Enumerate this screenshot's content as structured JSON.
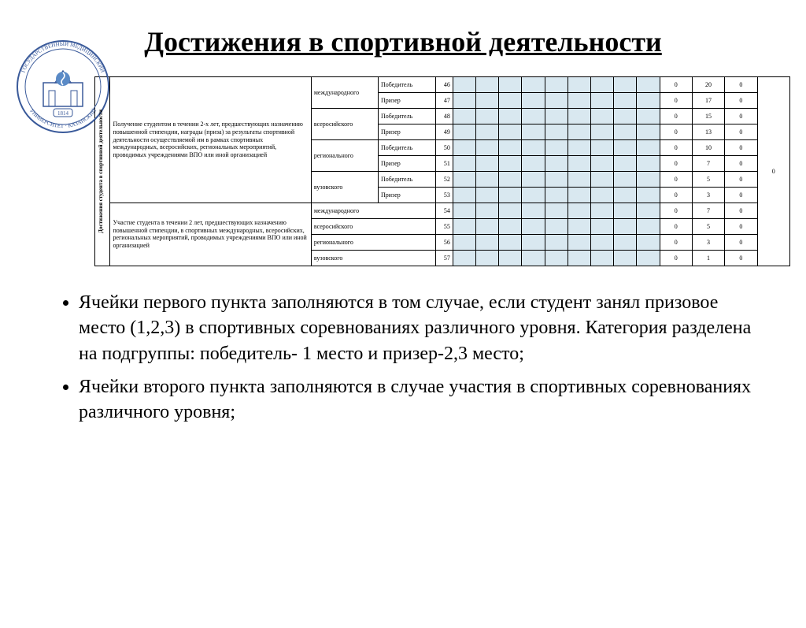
{
  "logo": {
    "org_top": "ГОСУДАРСТВЕННЫЙ МЕДИЦИНСКИЙ",
    "org_bottom": "УНИВЕРСИТЕТ",
    "year": "1814",
    "fill": "#5a8ac6",
    "stroke": "#3a5a9a"
  },
  "title": "Достижения в спортивной деятельности",
  "section_label": "Достижения студента в спортивной деятельности",
  "block1": {
    "desc": "Получение студентом в течении 2-х лет, предшествующих назначению повышенной стипендии, награды (приза) за результаты спортивной деятельности осуществляемой им в рамках спортивных международных, всеросийских, региональных мероприятий, проводимых учреждениями ВПО или иной организацией",
    "levels": [
      {
        "name": "международного",
        "rows": [
          {
            "res": "Победитель",
            "n": "46",
            "c1": "0",
            "c2": "20",
            "c3": "0"
          },
          {
            "res": "Призер",
            "n": "47",
            "c1": "0",
            "c2": "17",
            "c3": "0"
          }
        ]
      },
      {
        "name": "всеросийского",
        "rows": [
          {
            "res": "Победитель",
            "n": "48",
            "c1": "0",
            "c2": "15",
            "c3": "0"
          },
          {
            "res": "Призер",
            "n": "49",
            "c1": "0",
            "c2": "13",
            "c3": "0"
          }
        ]
      },
      {
        "name": "регионального",
        "rows": [
          {
            "res": "Победитель",
            "n": "50",
            "c1": "0",
            "c2": "10",
            "c3": "0"
          },
          {
            "res": "Призер",
            "n": "51",
            "c1": "0",
            "c2": "7",
            "c3": "0"
          }
        ]
      },
      {
        "name": "вузовского",
        "rows": [
          {
            "res": "Победитель",
            "n": "52",
            "c1": "0",
            "c2": "5",
            "c3": "0"
          },
          {
            "res": "Призер",
            "n": "53",
            "c1": "0",
            "c2": "3",
            "c3": "0"
          }
        ]
      }
    ]
  },
  "block2": {
    "desc": "Участие студента в течении 2 лет, предшествующих назначению повышенной стипендии, в спортивных международных, всеросийских, региональных мероприятий, проводимых учреждениями ВПО или иной организацией",
    "rows": [
      {
        "lvl": "международного",
        "n": "54",
        "c1": "0",
        "c2": "7",
        "c3": "0"
      },
      {
        "lvl": "всеросийского",
        "n": "55",
        "c1": "0",
        "c2": "5",
        "c3": "0"
      },
      {
        "lvl": "регионального",
        "n": "56",
        "c1": "0",
        "c2": "3",
        "c3": "0"
      },
      {
        "lvl": "вузовского",
        "n": "57",
        "c1": "0",
        "c2": "1",
        "c3": "0"
      }
    ]
  },
  "total_col": "0",
  "bullets": {
    "b1": "Ячейки первого пункта заполняются в том случае, если студент занял призовое место (1,2,3) в спортивных соревнованиях различного уровня. Категория разделена на подгруппы: победитель- 1 место и призер-2,3 место;",
    "b2": "Ячейки второго пункта заполняются в случае участия в спортивных соревнованиях различного уровня;"
  },
  "colors": {
    "fill_cell": "#d9e8f0",
    "border": "#000000"
  }
}
